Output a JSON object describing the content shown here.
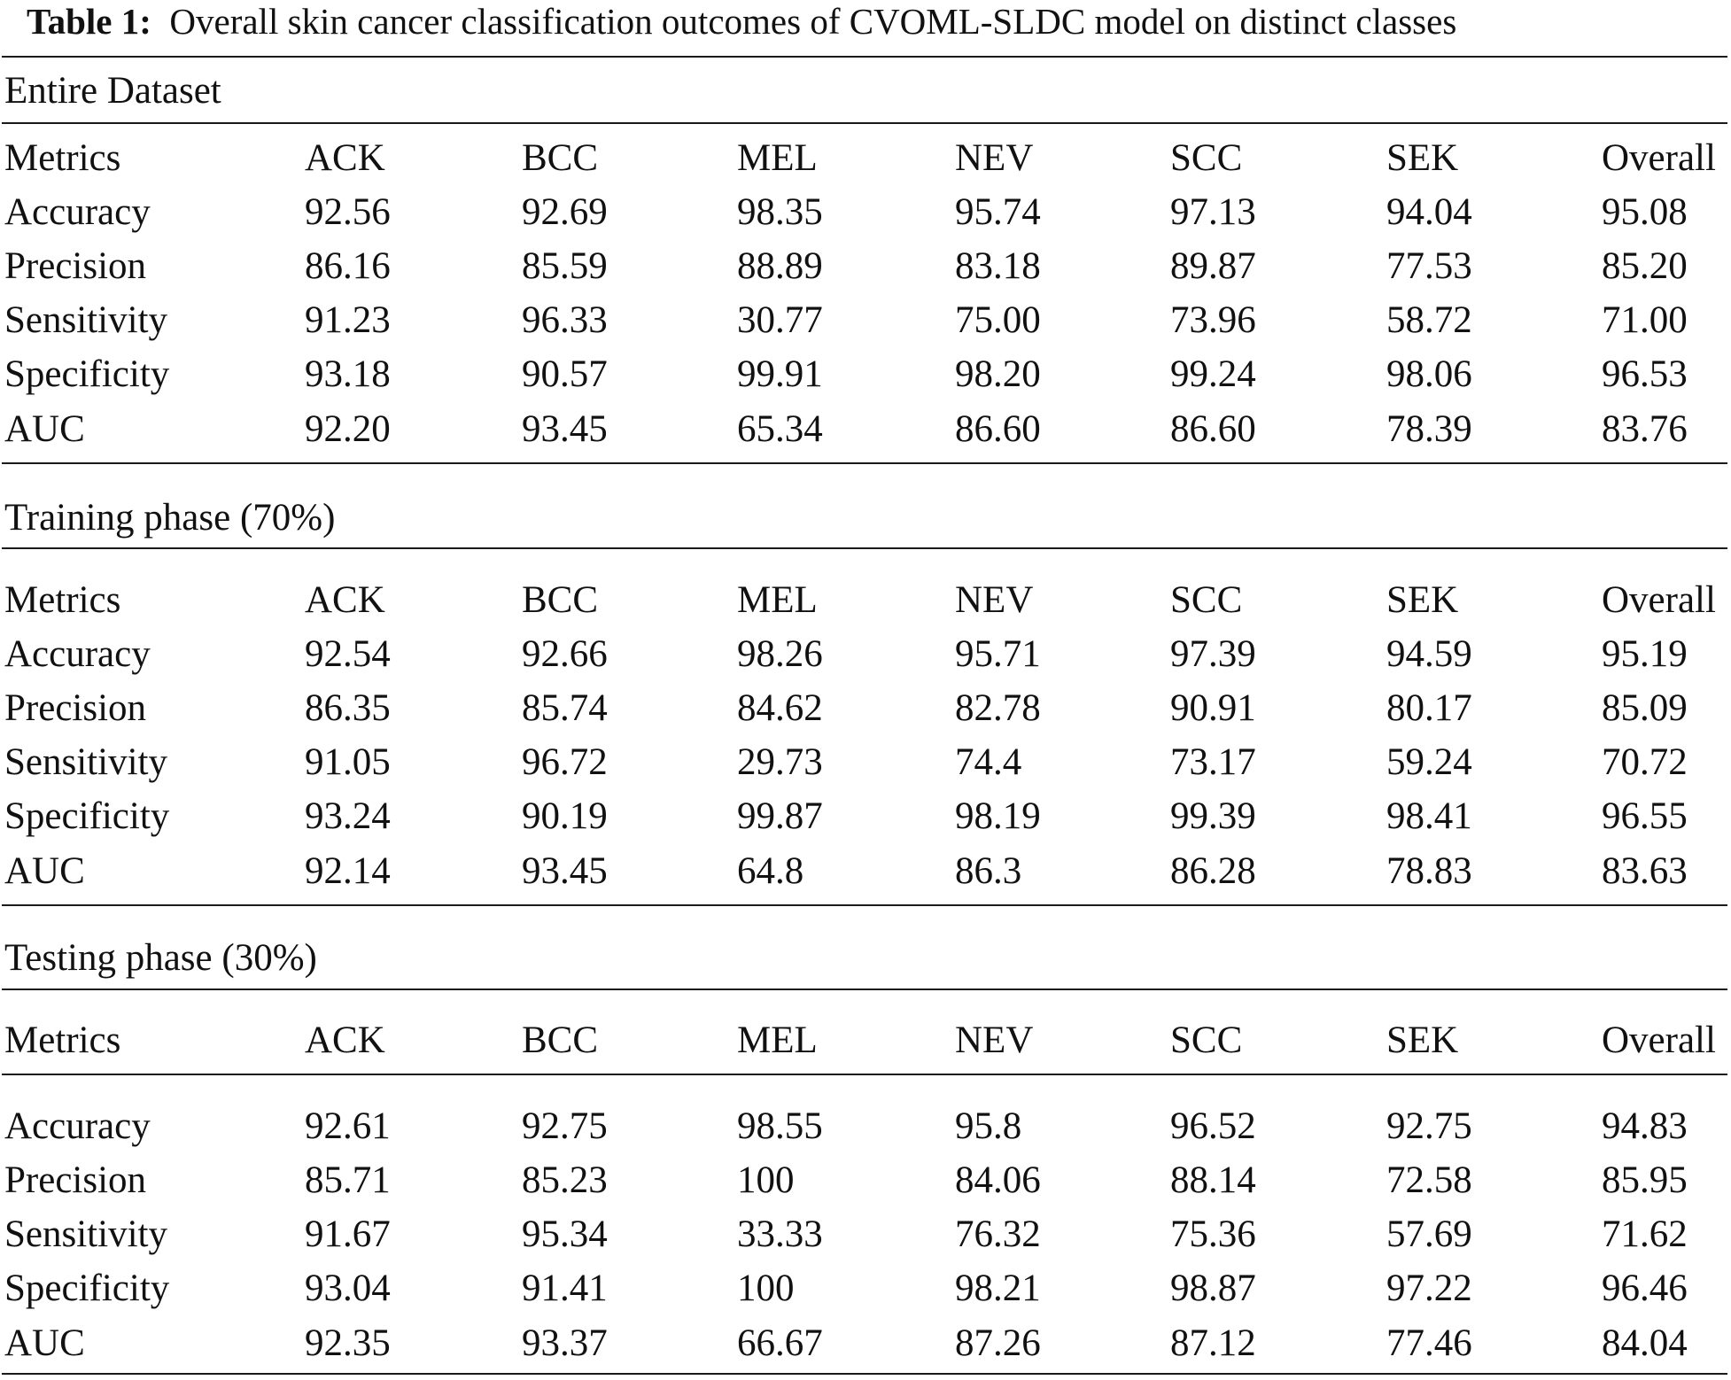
{
  "caption": {
    "label": "Table 1:",
    "text": "Overall skin cancer classification outcomes of CVOML-SLDC model on distinct classes"
  },
  "table": {
    "header": [
      "Metrics",
      "ACK",
      "BCC",
      "MEL",
      "NEV",
      "SCC",
      "SEK",
      "Overall"
    ],
    "sections": [
      {
        "title": "Entire Dataset",
        "rows": [
          [
            "Accuracy",
            "92.56",
            "92.69",
            "98.35",
            "95.74",
            "97.13",
            "94.04",
            "95.08"
          ],
          [
            "Precision",
            "86.16",
            "85.59",
            "88.89",
            "83.18",
            "89.87",
            "77.53",
            "85.20"
          ],
          [
            "Sensitivity",
            "91.23",
            "96.33",
            "30.77",
            "75.00",
            "73.96",
            "58.72",
            "71.00"
          ],
          [
            "Specificity",
            "93.18",
            "90.57",
            "99.91",
            "98.20",
            "99.24",
            "98.06",
            "96.53"
          ],
          [
            "AUC",
            "92.20",
            "93.45",
            "65.34",
            "86.60",
            "86.60",
            "78.39",
            "83.76"
          ]
        ]
      },
      {
        "title": "Training phase (70%)",
        "rows": [
          [
            "Accuracy",
            "92.54",
            "92.66",
            "98.26",
            "95.71",
            "97.39",
            "94.59",
            "95.19"
          ],
          [
            "Precision",
            "86.35",
            "85.74",
            "84.62",
            "82.78",
            "90.91",
            "80.17",
            "85.09"
          ],
          [
            "Sensitivity",
            "91.05",
            "96.72",
            "29.73",
            "74.4",
            "73.17",
            "59.24",
            "70.72"
          ],
          [
            "Specificity",
            "93.24",
            "90.19",
            "99.87",
            "98.19",
            "99.39",
            "98.41",
            "96.55"
          ],
          [
            "AUC",
            "92.14",
            "93.45",
            "64.8",
            "86.3",
            "86.28",
            "78.83",
            "83.63"
          ]
        ]
      },
      {
        "title": "Testing phase (30%)",
        "rows": [
          [
            "Accuracy",
            "92.61",
            "92.75",
            "98.55",
            "95.8",
            "96.52",
            "92.75",
            "94.83"
          ],
          [
            "Precision",
            "85.71",
            "85.23",
            "100",
            "84.06",
            "88.14",
            "72.58",
            "85.95"
          ],
          [
            "Sensitivity",
            "91.67",
            "95.34",
            "33.33",
            "76.32",
            "75.36",
            "57.69",
            "71.62"
          ],
          [
            "Specificity",
            "93.04",
            "91.41",
            "100",
            "98.21",
            "98.87",
            "97.22",
            "96.46"
          ],
          [
            "AUC",
            "92.35",
            "93.37",
            "66.67",
            "87.26",
            "87.12",
            "77.46",
            "84.04"
          ]
        ]
      }
    ]
  }
}
